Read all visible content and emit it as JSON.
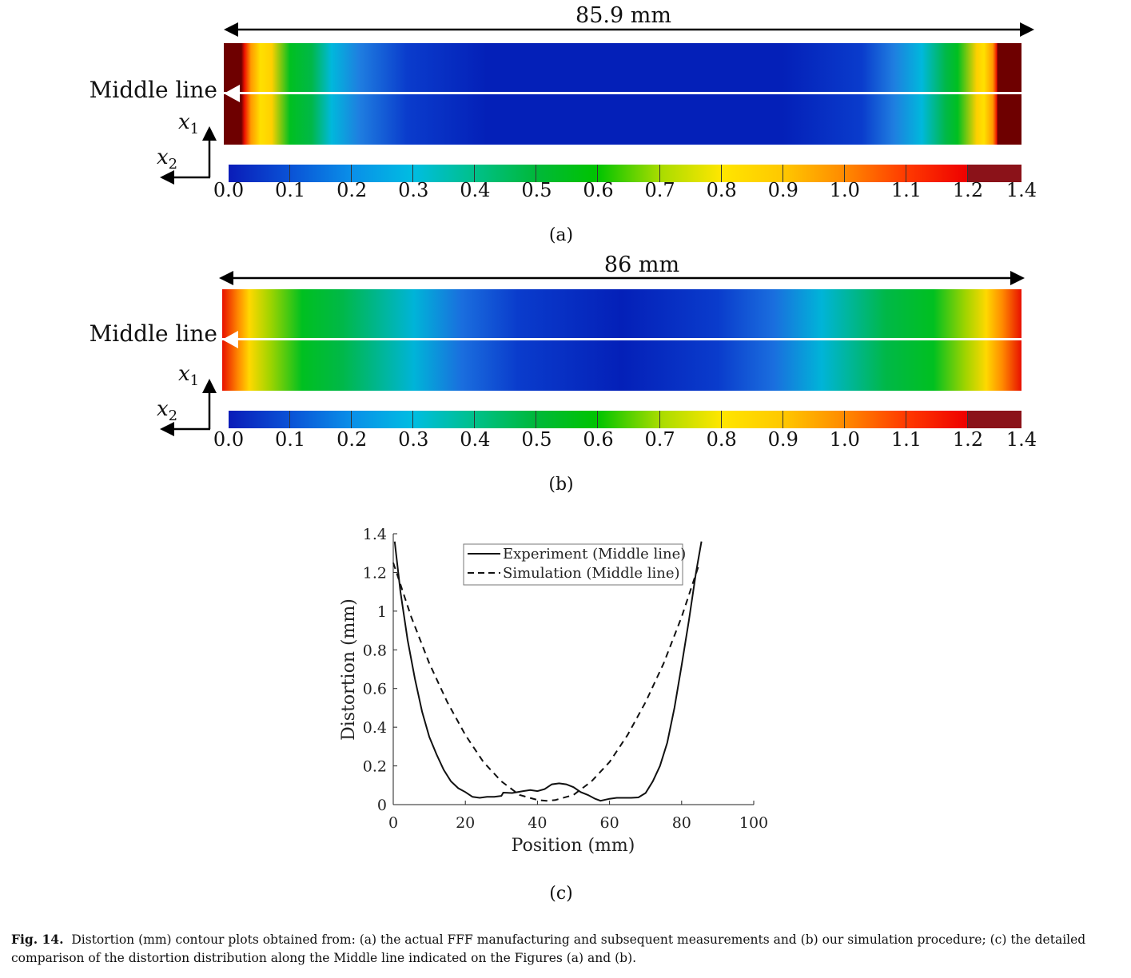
{
  "panel_a": {
    "dimension": "85.9 mm",
    "middle_line": "Middle line",
    "axis1": "x",
    "axis1_sub": "1",
    "axis2": "x",
    "axis2_sub": "2",
    "label": "(a)"
  },
  "panel_b": {
    "dimension": "86 mm",
    "middle_line": "Middle line",
    "axis1": "x",
    "axis1_sub": "1",
    "axis2": "x",
    "axis2_sub": "2",
    "label": "(b)"
  },
  "colorbar": {
    "ticks": [
      "0.0",
      "0.1",
      "0.2",
      "0.3",
      "0.4",
      "0.5",
      "0.6",
      "0.7",
      "0.8",
      "0.9",
      "1.0",
      "1.1",
      "1.2",
      "1.4"
    ],
    "colors": [
      "#0a1cb8",
      "#0a52d6",
      "#0a8fe8",
      "#00bde2",
      "#00c08a",
      "#00b83a",
      "#00c400",
      "#a8dc00",
      "#ffe600",
      "#ffc800",
      "#ff8a00",
      "#ff3a00",
      "#ee0000"
    ],
    "top_color": "#8b1219"
  },
  "chart_data": {
    "type": "line",
    "xlabel": "Position (mm)",
    "ylabel": "Distortion (mm)",
    "xlim": [
      0,
      100
    ],
    "ylim": [
      0,
      1.4
    ],
    "xticks": [
      "0",
      "20",
      "40",
      "60",
      "80",
      "100"
    ],
    "yticks": [
      "0",
      "0.2",
      "0.4",
      "0.6",
      "0.8",
      "1",
      "1.2",
      "1.4"
    ],
    "legend_position": "top",
    "series": [
      {
        "name": "Experiment (Middle line)",
        "style": "solid",
        "x": [
          0.4,
          2,
          4,
          6,
          8,
          10,
          12,
          14,
          16,
          18,
          20,
          22,
          24,
          26,
          28,
          30,
          30.5,
          33,
          36,
          38,
          40,
          42,
          44,
          46,
          48,
          50,
          52,
          54,
          56,
          57.5,
          60,
          62,
          66,
          68,
          70,
          72,
          74,
          76,
          78,
          80,
          82,
          84,
          85.5
        ],
        "y": [
          1.36,
          1.1,
          0.85,
          0.65,
          0.48,
          0.35,
          0.26,
          0.18,
          0.12,
          0.085,
          0.065,
          0.04,
          0.035,
          0.04,
          0.04,
          0.045,
          0.062,
          0.06,
          0.07,
          0.075,
          0.07,
          0.08,
          0.105,
          0.11,
          0.105,
          0.09,
          0.065,
          0.05,
          0.03,
          0.02,
          0.03,
          0.035,
          0.035,
          0.037,
          0.06,
          0.12,
          0.2,
          0.32,
          0.5,
          0.72,
          0.95,
          1.2,
          1.36
        ]
      },
      {
        "name": "Simulation (Middle line)",
        "style": "dashed",
        "x": [
          0,
          5,
          10,
          15,
          20,
          25,
          30,
          35,
          40,
          42.5,
          45,
          50,
          55,
          60,
          65,
          70,
          75,
          80,
          85
        ],
        "y": [
          1.25,
          0.97,
          0.73,
          0.53,
          0.36,
          0.22,
          0.12,
          0.05,
          0.024,
          0.02,
          0.024,
          0.05,
          0.12,
          0.22,
          0.36,
          0.53,
          0.73,
          0.97,
          1.25
        ]
      }
    ]
  },
  "panel_c": {
    "label": "(c)"
  },
  "caption": {
    "fig": "Fig. 14.",
    "text": "Distortion (mm) contour plots obtained from: (a) the actual FFF manufacturing and subsequent measurements and (b) our simulation procedure; (c) the detailed comparison of the distortion distribution along the Middle line indicated on the Figures (a) and (b)."
  }
}
